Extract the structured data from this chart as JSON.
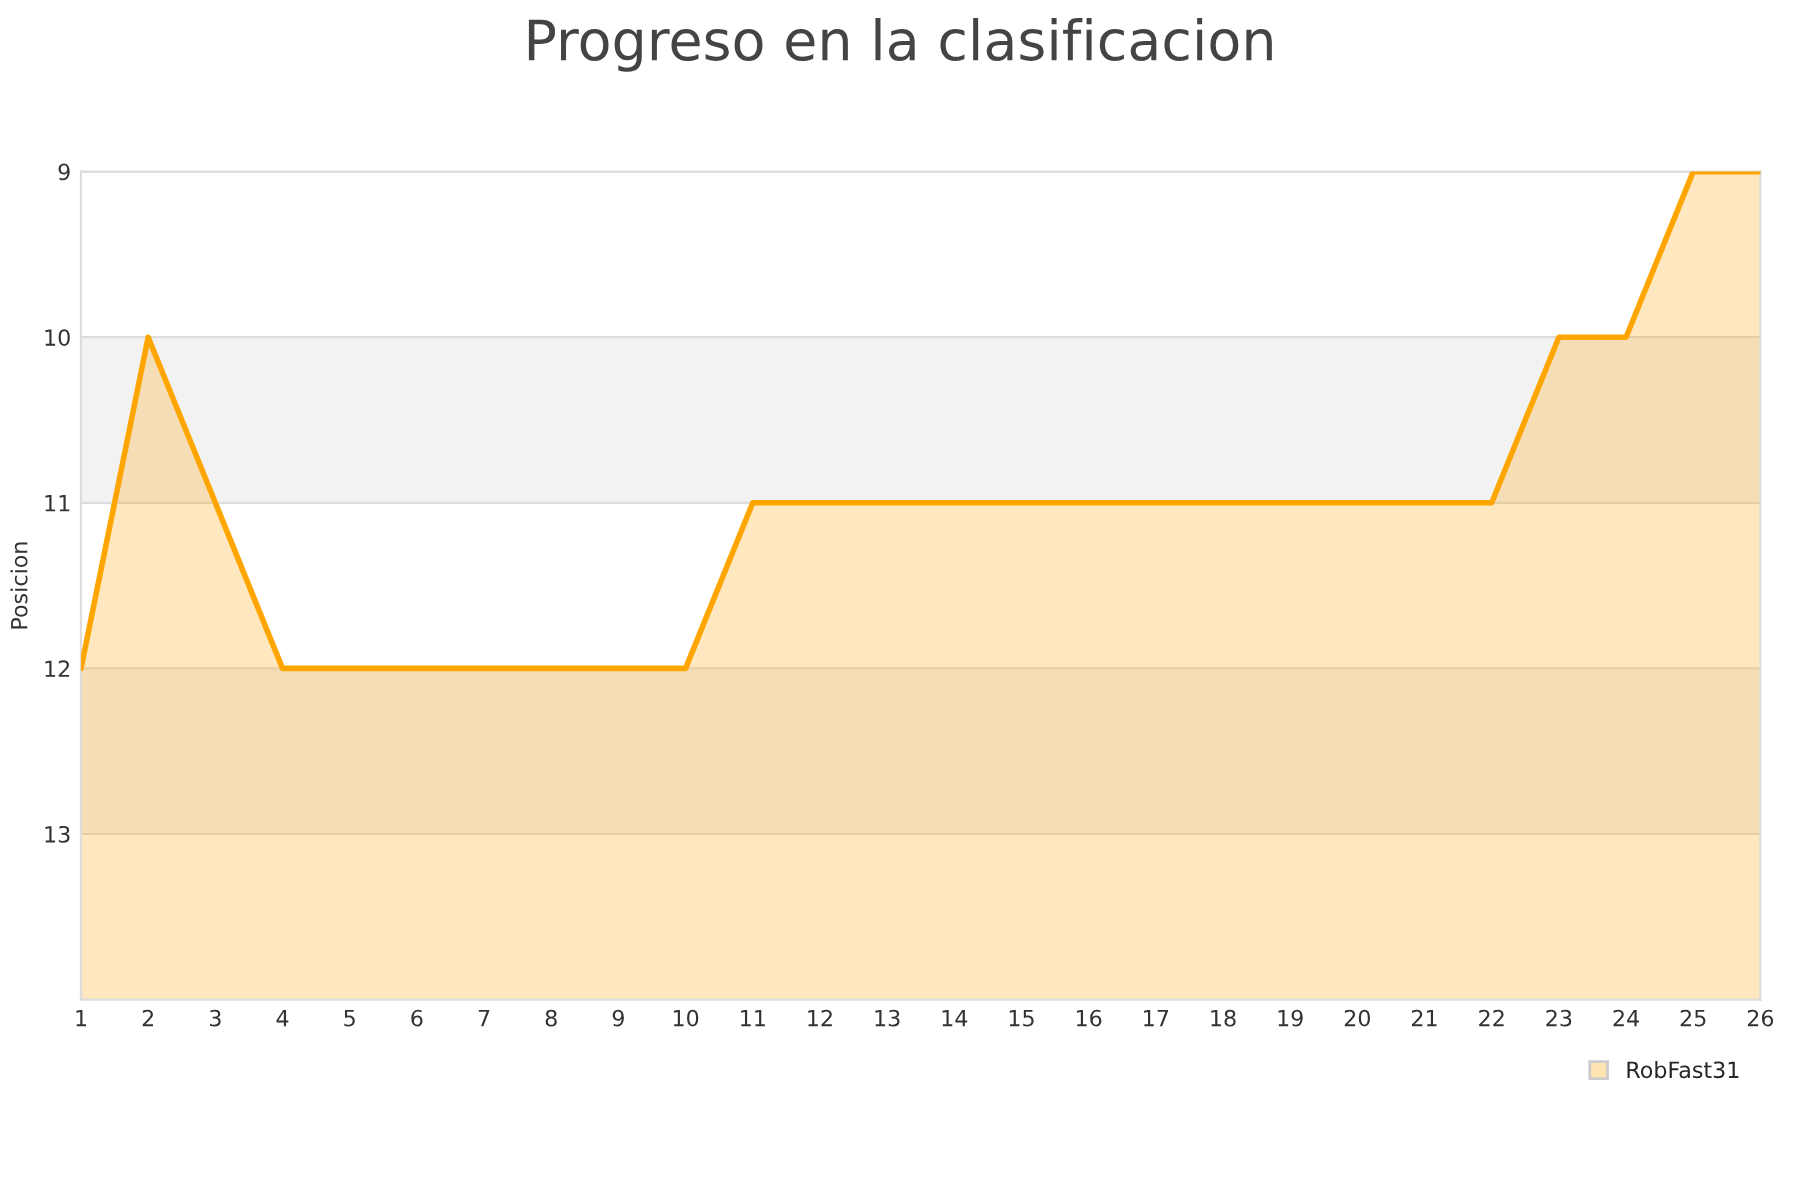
{
  "chart_data": {
    "type": "area",
    "title": "Progreso en la clasificacion",
    "ylabel": "Posicion",
    "x": [
      1,
      2,
      3,
      4,
      5,
      6,
      7,
      8,
      9,
      10,
      11,
      12,
      13,
      14,
      15,
      16,
      17,
      18,
      19,
      20,
      21,
      22,
      23,
      24,
      25,
      26
    ],
    "series": [
      {
        "name": "RobFast31",
        "color": "#ffa500",
        "values": [
          12,
          10,
          11,
          12,
          12,
          12,
          12,
          12,
          12,
          12,
          11,
          11,
          11,
          11,
          11,
          11,
          11,
          11,
          11,
          11,
          11,
          11,
          10,
          10,
          9,
          9
        ]
      }
    ],
    "xlim": [
      1,
      26
    ],
    "xticks": [
      1,
      2,
      3,
      4,
      5,
      6,
      7,
      8,
      9,
      10,
      11,
      12,
      13,
      14,
      15,
      16,
      17,
      18,
      19,
      20,
      21,
      22,
      23,
      24,
      25,
      26
    ],
    "ylim": [
      14,
      9
    ],
    "yticks": [
      9,
      10,
      11,
      12,
      13
    ],
    "bands": [
      {
        "axis": "y",
        "from": 10,
        "to": 11,
        "color": "#f2f2f2"
      },
      {
        "axis": "y",
        "from": 12,
        "to": 13,
        "color": "#f2f2f2"
      }
    ],
    "grid": "y",
    "legend": "bottom right",
    "marker": "none",
    "line_style": "solid"
  }
}
